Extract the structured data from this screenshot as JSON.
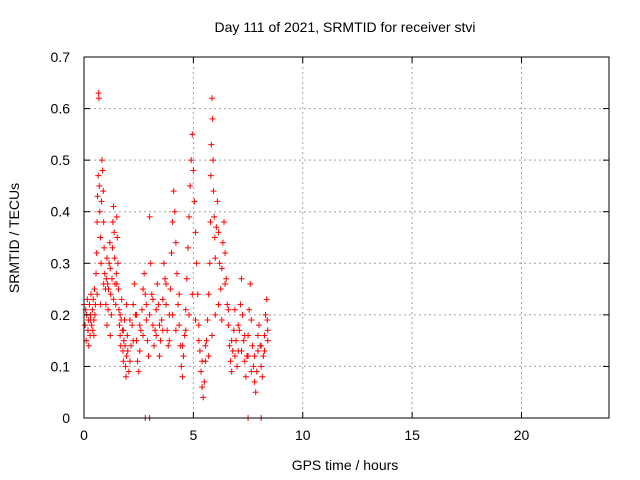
{
  "chart_data": {
    "type": "scatter",
    "title": "Day 111 of 2021, SRMTID for receiver stvi",
    "xlabel": "GPS time / hours",
    "ylabel": "SRMTID / TECUs",
    "xlim": [
      0,
      24
    ],
    "ylim": [
      0,
      0.7
    ],
    "xticks": [
      0,
      5,
      10,
      15,
      20
    ],
    "xtick_labels": [
      "0",
      "5",
      "10",
      "15",
      "20"
    ],
    "yticks": [
      0,
      0.1,
      0.2,
      0.3,
      0.4,
      0.5,
      0.6,
      0.7
    ],
    "ytick_labels": [
      "0",
      "0.1",
      "0.2",
      "0.3",
      "0.4",
      "0.5",
      "0.6",
      "0.7"
    ],
    "grid": true,
    "marker": "+",
    "color": "#ff0000",
    "series": [
      {
        "name": "SRMTID",
        "points": [
          [
            0.0,
            0.22
          ],
          [
            0.05,
            0.18
          ],
          [
            0.08,
            0.21
          ],
          [
            0.1,
            0.15
          ],
          [
            0.12,
            0.2
          ],
          [
            0.15,
            0.23
          ],
          [
            0.18,
            0.17
          ],
          [
            0.2,
            0.19
          ],
          [
            0.22,
            0.14
          ],
          [
            0.25,
            0.22
          ],
          [
            0.28,
            0.16
          ],
          [
            0.3,
            0.2
          ],
          [
            0.32,
            0.24
          ],
          [
            0.35,
            0.18
          ],
          [
            0.38,
            0.21
          ],
          [
            0.4,
            0.17
          ],
          [
            0.42,
            0.23
          ],
          [
            0.45,
            0.19
          ],
          [
            0.48,
            0.25
          ],
          [
            0.5,
            0.2
          ],
          [
            0.52,
            0.22
          ],
          [
            0.55,
            0.28
          ],
          [
            0.58,
            0.32
          ],
          [
            0.6,
            0.38
          ],
          [
            0.62,
            0.43
          ],
          [
            0.65,
            0.47
          ],
          [
            0.67,
            0.63
          ],
          [
            0.68,
            0.62
          ],
          [
            0.7,
            0.45
          ],
          [
            0.72,
            0.4
          ],
          [
            0.75,
            0.35
          ],
          [
            0.78,
            0.3
          ],
          [
            0.8,
            0.42
          ],
          [
            0.82,
            0.5
          ],
          [
            0.85,
            0.48
          ],
          [
            0.88,
            0.44
          ],
          [
            0.9,
            0.38
          ],
          [
            0.92,
            0.33
          ],
          [
            0.95,
            0.28
          ],
          [
            0.98,
            0.25
          ],
          [
            1.0,
            0.22
          ],
          [
            1.02,
            0.27
          ],
          [
            1.05,
            0.31
          ],
          [
            1.08,
            0.26
          ],
          [
            1.1,
            0.21
          ],
          [
            1.12,
            0.25
          ],
          [
            1.15,
            0.3
          ],
          [
            1.18,
            0.34
          ],
          [
            1.2,
            0.29
          ],
          [
            1.22,
            0.24
          ],
          [
            1.25,
            0.2
          ],
          [
            1.28,
            0.27
          ],
          [
            1.3,
            0.33
          ],
          [
            1.32,
            0.38
          ],
          [
            1.35,
            0.41
          ],
          [
            1.38,
            0.36
          ],
          [
            1.4,
            0.31
          ],
          [
            1.42,
            0.26
          ],
          [
            1.45,
            0.22
          ],
          [
            1.48,
            0.28
          ],
          [
            1.5,
            0.39
          ],
          [
            1.52,
            0.35
          ],
          [
            1.55,
            0.3
          ],
          [
            1.58,
            0.25
          ],
          [
            1.6,
            0.21
          ],
          [
            1.62,
            0.18
          ],
          [
            1.65,
            0.16
          ],
          [
            1.68,
            0.14
          ],
          [
            1.7,
            0.19
          ],
          [
            1.72,
            0.23
          ],
          [
            1.75,
            0.17
          ],
          [
            1.78,
            0.13
          ],
          [
            1.8,
            0.11
          ],
          [
            1.82,
            0.15
          ],
          [
            1.85,
            0.19
          ],
          [
            1.88,
            0.14
          ],
          [
            1.9,
            0.1
          ],
          [
            1.92,
            0.08
          ],
          [
            1.95,
            0.12
          ],
          [
            1.98,
            0.16
          ],
          [
            2.0,
            0.13
          ],
          [
            2.05,
            0.09
          ],
          [
            2.1,
            0.11
          ],
          [
            2.15,
            0.14
          ],
          [
            2.2,
            0.18
          ],
          [
            2.25,
            0.22
          ],
          [
            2.3,
            0.26
          ],
          [
            2.35,
            0.2
          ],
          [
            2.4,
            0.15
          ],
          [
            2.45,
            0.11
          ],
          [
            2.5,
            0.09
          ],
          [
            2.55,
            0.13
          ],
          [
            2.6,
            0.17
          ],
          [
            2.65,
            0.21
          ],
          [
            2.7,
            0.25
          ],
          [
            2.75,
            0.28
          ],
          [
            2.8,
            0.24
          ],
          [
            2.85,
            0.19
          ],
          [
            2.9,
            0.15
          ],
          [
            2.95,
            0.12
          ],
          [
            3.0,
            0.39
          ],
          [
            3.05,
            0.3
          ],
          [
            3.1,
            0.24
          ],
          [
            3.15,
            0.18
          ],
          [
            3.2,
            0.14
          ],
          [
            3.25,
            0.17
          ],
          [
            3.3,
            0.21
          ],
          [
            3.35,
            0.26
          ],
          [
            3.4,
            0.22
          ],
          [
            3.45,
            0.18
          ],
          [
            3.5,
            0.15
          ],
          [
            3.55,
            0.19
          ],
          [
            3.6,
            0.23
          ],
          [
            3.65,
            0.3
          ],
          [
            3.7,
            0.27
          ],
          [
            3.75,
            0.22
          ],
          [
            3.8,
            0.17
          ],
          [
            3.85,
            0.14
          ],
          [
            3.9,
            0.2
          ],
          [
            3.95,
            0.25
          ],
          [
            4.0,
            0.32
          ],
          [
            4.05,
            0.38
          ],
          [
            4.1,
            0.44
          ],
          [
            4.15,
            0.4
          ],
          [
            4.2,
            0.34
          ],
          [
            4.25,
            0.28
          ],
          [
            4.3,
            0.22
          ],
          [
            4.35,
            0.18
          ],
          [
            4.4,
            0.14
          ],
          [
            4.45,
            0.1
          ],
          [
            4.5,
            0.08
          ],
          [
            4.55,
            0.12
          ],
          [
            4.6,
            0.16
          ],
          [
            4.65,
            0.21
          ],
          [
            4.7,
            0.27
          ],
          [
            4.75,
            0.33
          ],
          [
            4.8,
            0.39
          ],
          [
            4.85,
            0.45
          ],
          [
            4.9,
            0.5
          ],
          [
            4.95,
            0.55
          ],
          [
            5.0,
            0.48
          ],
          [
            5.05,
            0.42
          ],
          [
            5.1,
            0.36
          ],
          [
            5.15,
            0.3
          ],
          [
            5.2,
            0.24
          ],
          [
            5.25,
            0.18
          ],
          [
            5.3,
            0.13
          ],
          [
            5.35,
            0.09
          ],
          [
            5.4,
            0.06
          ],
          [
            5.45,
            0.04
          ],
          [
            5.5,
            0.07
          ],
          [
            5.55,
            0.11
          ],
          [
            5.6,
            0.15
          ],
          [
            5.65,
            0.19
          ],
          [
            5.7,
            0.24
          ],
          [
            5.75,
            0.3
          ],
          [
            5.78,
            0.38
          ],
          [
            5.8,
            0.47
          ],
          [
            5.82,
            0.53
          ],
          [
            5.85,
            0.62
          ],
          [
            5.88,
            0.58
          ],
          [
            5.9,
            0.5
          ],
          [
            5.92,
            0.44
          ],
          [
            5.95,
            0.39
          ],
          [
            5.98,
            0.35
          ],
          [
            6.0,
            0.31
          ],
          [
            6.05,
            0.37
          ],
          [
            6.1,
            0.42
          ],
          [
            6.15,
            0.36
          ],
          [
            6.2,
            0.3
          ],
          [
            6.25,
            0.25
          ],
          [
            6.3,
            0.29
          ],
          [
            6.35,
            0.34
          ],
          [
            6.4,
            0.38
          ],
          [
            6.45,
            0.32
          ],
          [
            6.5,
            0.27
          ],
          [
            6.55,
            0.22
          ],
          [
            6.6,
            0.18
          ],
          [
            6.65,
            0.14
          ],
          [
            6.7,
            0.11
          ],
          [
            6.75,
            0.09
          ],
          [
            6.8,
            0.13
          ],
          [
            6.85,
            0.17
          ],
          [
            6.9,
            0.21
          ],
          [
            6.95,
            0.15
          ],
          [
            7.0,
            0.1
          ],
          [
            7.05,
            0.13
          ],
          [
            7.1,
            0.17
          ],
          [
            7.15,
            0.22
          ],
          [
            7.2,
            0.27
          ],
          [
            7.25,
            0.2
          ],
          [
            7.3,
            0.15
          ],
          [
            7.35,
            0.11
          ],
          [
            7.4,
            0.08
          ],
          [
            7.45,
            0.12
          ],
          [
            7.5,
            0.16
          ],
          [
            7.55,
            0.21
          ],
          [
            7.6,
            0.26
          ],
          [
            7.65,
            0.19
          ],
          [
            7.7,
            0.14
          ],
          [
            7.75,
            0.1
          ],
          [
            7.8,
            0.07
          ],
          [
            7.85,
            0.05
          ],
          [
            7.9,
            0.09
          ],
          [
            7.95,
            0.13
          ],
          [
            8.0,
            0.18
          ],
          [
            8.05,
            0.14
          ],
          [
            8.1,
            0.1
          ],
          [
            8.15,
            0.08
          ],
          [
            8.2,
            0.12
          ],
          [
            8.25,
            0.16
          ],
          [
            8.3,
            0.2
          ],
          [
            8.35,
            0.23
          ],
          [
            8.38,
            0.19
          ],
          [
            8.4,
            0.15
          ],
          [
            0.3,
            0.19
          ],
          [
            0.45,
            0.16
          ],
          [
            0.6,
            0.24
          ],
          [
            0.75,
            0.22
          ],
          [
            0.9,
            0.26
          ],
          [
            1.05,
            0.18
          ],
          [
            1.2,
            0.16
          ],
          [
            1.35,
            0.23
          ],
          [
            1.5,
            0.26
          ],
          [
            1.65,
            0.2
          ],
          [
            1.8,
            0.17
          ],
          [
            1.95,
            0.22
          ],
          [
            2.1,
            0.19
          ],
          [
            2.25,
            0.15
          ],
          [
            2.4,
            0.2
          ],
          [
            2.55,
            0.18
          ],
          [
            2.7,
            0.16
          ],
          [
            2.85,
            0.22
          ],
          [
            3.0,
            0.2
          ],
          [
            3.15,
            0.23
          ],
          [
            3.3,
            0.16
          ],
          [
            3.45,
            0.12
          ],
          [
            3.6,
            0.17
          ],
          [
            3.75,
            0.26
          ],
          [
            3.9,
            0.15
          ],
          [
            4.05,
            0.2
          ],
          [
            4.2,
            0.17
          ],
          [
            4.35,
            0.24
          ],
          [
            4.5,
            0.14
          ],
          [
            4.65,
            0.17
          ],
          [
            4.8,
            0.2
          ],
          [
            4.95,
            0.24
          ],
          [
            5.1,
            0.19
          ],
          [
            5.25,
            0.15
          ],
          [
            5.4,
            0.11
          ],
          [
            5.55,
            0.14
          ],
          [
            5.7,
            0.12
          ],
          [
            5.85,
            0.16
          ],
          [
            6.0,
            0.2
          ],
          [
            6.15,
            0.22
          ],
          [
            6.3,
            0.19
          ],
          [
            6.45,
            0.26
          ],
          [
            6.6,
            0.21
          ],
          [
            6.75,
            0.15
          ],
          [
            6.9,
            0.12
          ],
          [
            7.05,
            0.18
          ],
          [
            7.2,
            0.13
          ],
          [
            7.35,
            0.16
          ],
          [
            7.5,
            0.12
          ],
          [
            7.65,
            0.09
          ],
          [
            7.8,
            0.12
          ],
          [
            7.95,
            0.16
          ],
          [
            8.1,
            0.14
          ],
          [
            8.25,
            0.13
          ],
          [
            8.4,
            0.17
          ],
          [
            2.8,
            0.0
          ],
          [
            3.0,
            0.0
          ],
          [
            7.5,
            0.0
          ],
          [
            8.1,
            0.0
          ]
        ]
      }
    ]
  }
}
